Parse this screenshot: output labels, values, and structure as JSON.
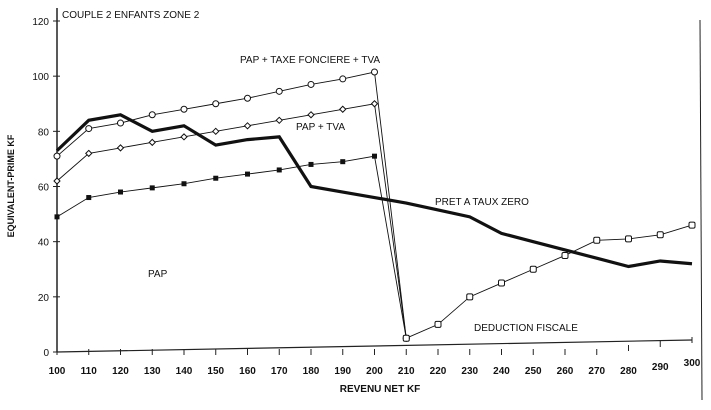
{
  "chart_data": {
    "type": "line",
    "title": "COUPLE 2 ENFANTS ZONE 2",
    "xlabel": "REVENU NET KF",
    "ylabel": "EQUIVALENT-PRIME KF",
    "xlim": [
      100,
      300
    ],
    "ylim": [
      0,
      120
    ],
    "xticks": [
      100,
      110,
      120,
      130,
      140,
      150,
      160,
      170,
      180,
      190,
      200,
      210,
      220,
      230,
      240,
      250,
      260,
      270,
      280,
      290,
      300
    ],
    "yticks": [
      0,
      20,
      40,
      60,
      80,
      100,
      120
    ],
    "grid": false,
    "series": [
      {
        "name": "PAP + TAXE FONCIERE + TVA",
        "marker": "open-circle",
        "x": [
          100,
          110,
          120,
          130,
          140,
          150,
          160,
          170,
          180,
          190,
          200,
          210
        ],
        "y": [
          71,
          81,
          83,
          86,
          88,
          90,
          92,
          94.5,
          97,
          99,
          101.5,
          5
        ]
      },
      {
        "name": "PAP + TVA",
        "marker": "open-diamond",
        "x": [
          100,
          110,
          120,
          130,
          140,
          150,
          160,
          170,
          180,
          190,
          200,
          210
        ],
        "y": [
          62,
          72,
          74,
          76,
          78,
          80,
          82,
          84,
          86,
          88,
          90,
          5
        ]
      },
      {
        "name": "PAP",
        "marker": "filled-square",
        "x": [
          100,
          110,
          120,
          130,
          140,
          150,
          160,
          170,
          180,
          190,
          200,
          210
        ],
        "y": [
          49,
          56,
          58,
          59.5,
          61,
          63,
          64.5,
          66,
          68,
          69,
          71,
          5
        ]
      },
      {
        "name": "PRET A TAUX ZERO",
        "marker": "none",
        "bold": true,
        "x": [
          100,
          110,
          120,
          130,
          140,
          150,
          160,
          170,
          180,
          190,
          200,
          210,
          220,
          230,
          240,
          250,
          260,
          270,
          280,
          290,
          300
        ],
        "y": [
          73,
          84,
          86,
          80,
          82,
          75,
          77,
          78,
          60,
          58,
          56,
          54,
          51.5,
          49,
          43,
          40,
          37,
          34,
          31,
          33,
          32
        ]
      },
      {
        "name": "DEDUCTION FISCALE",
        "marker": "open-square",
        "x": [
          210,
          220,
          230,
          240,
          250,
          260,
          270,
          280,
          290,
          300
        ],
        "y": [
          5,
          10,
          20,
          25,
          30,
          35,
          40.5,
          41,
          42.5,
          46
        ]
      }
    ]
  }
}
